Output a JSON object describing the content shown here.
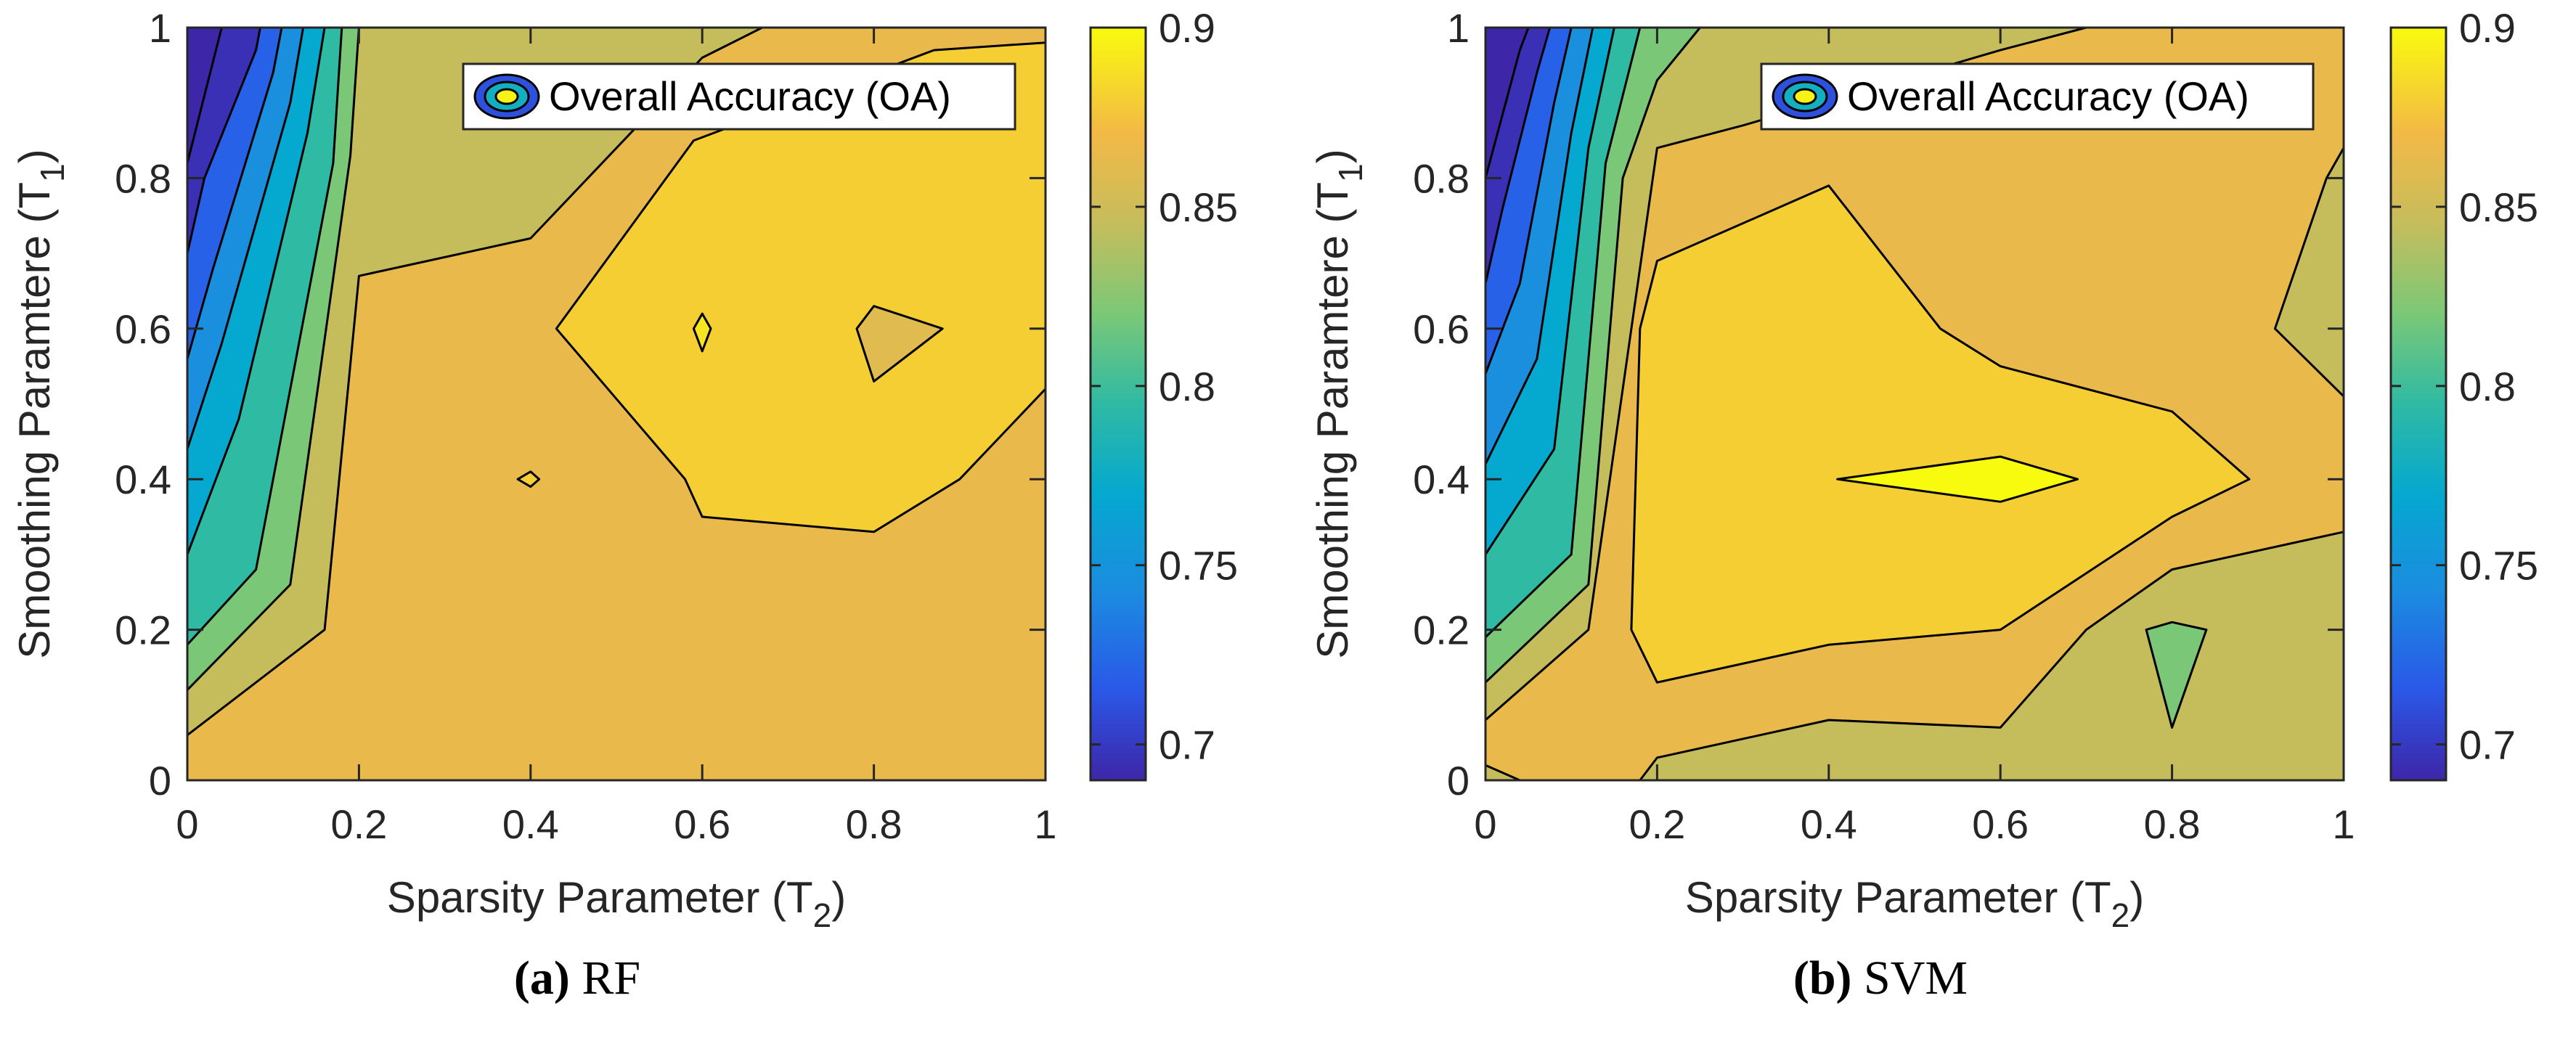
{
  "chart_data": [
    {
      "type": "contour",
      "panel_label": "(a)",
      "panel_name": "RF",
      "xlabel": "Sparsity Parameter (T",
      "xlabel_sub": "2",
      "ylabel": "Smoothing Paramtere (T",
      "ylabel_sub": "1",
      "xlim": [
        0,
        1
      ],
      "ylim": [
        0,
        1
      ],
      "xticks": [
        0,
        0.2,
        0.4,
        0.6,
        0.8,
        1
      ],
      "yticks": [
        0,
        0.2,
        0.4,
        0.6,
        0.8,
        1
      ],
      "xtick_labels": [
        "0",
        "0.2",
        "0.4",
        "0.6",
        "0.8",
        "1"
      ],
      "ytick_labels": [
        "0",
        "0.2",
        "0.4",
        "0.6",
        "0.8",
        "1"
      ],
      "legend": "Overall Accuracy (OA)",
      "colorbar": {
        "range": [
          0.69,
          0.9
        ],
        "ticks": [
          "0.7",
          "0.75",
          "0.8",
          "0.85",
          "0.9"
        ]
      },
      "regions": [
        {
          "level": 0.865,
          "points": [
            [
              0,
              0
            ],
            [
              1,
              0
            ],
            [
              1,
              1
            ],
            [
              0,
              1
            ]
          ]
        },
        {
          "level": 0.845,
          "points": [
            [
              0,
              0.06
            ],
            [
              0.16,
              0.2
            ],
            [
              0.2,
              0.67
            ],
            [
              0.4,
              0.72
            ],
            [
              0.6,
              0.96
            ],
            [
              0.67,
              1
            ],
            [
              0,
              1
            ]
          ]
        },
        {
          "level": 0.82,
          "points": [
            [
              0,
              0.12
            ],
            [
              0.12,
              0.26
            ],
            [
              0.19,
              0.83
            ],
            [
              0.2,
              1
            ],
            [
              0,
              1
            ]
          ]
        },
        {
          "level": 0.795,
          "points": [
            [
              0,
              0.18
            ],
            [
              0.08,
              0.28
            ],
            [
              0.17,
              0.82
            ],
            [
              0.18,
              1
            ],
            [
              0,
              1
            ]
          ]
        },
        {
          "level": 0.77,
          "points": [
            [
              0,
              0.3
            ],
            [
              0.06,
              0.48
            ],
            [
              0.14,
              0.86
            ],
            [
              0.16,
              1
            ],
            [
              0,
              1
            ]
          ]
        },
        {
          "level": 0.745,
          "points": [
            [
              0,
              0.44
            ],
            [
              0.04,
              0.58
            ],
            [
              0.12,
              0.9
            ],
            [
              0.135,
              1
            ],
            [
              0,
              1
            ]
          ]
        },
        {
          "level": 0.72,
          "points": [
            [
              0,
              0.56
            ],
            [
              0.03,
              0.68
            ],
            [
              0.1,
              0.94
            ],
            [
              0.11,
              1
            ],
            [
              0,
              1
            ]
          ]
        },
        {
          "level": 0.695,
          "points": [
            [
              0,
              0.7
            ],
            [
              0.02,
              0.8
            ],
            [
              0.08,
              0.97
            ],
            [
              0.085,
              1
            ],
            [
              0,
              1
            ]
          ]
        },
        {
          "level": 0.675,
          "points": [
            [
              0,
              0.82
            ],
            [
              0.04,
              1
            ],
            [
              0,
              1
            ]
          ]
        },
        {
          "level": 0.88,
          "points": [
            [
              0.43,
              0.6
            ],
            [
              0.58,
              0.4
            ],
            [
              0.6,
              0.35
            ],
            [
              0.8,
              0.33
            ],
            [
              0.9,
              0.4
            ],
            [
              1,
              0.52
            ],
            [
              1,
              0.98
            ],
            [
              0.87,
              0.97
            ],
            [
              0.59,
              0.85
            ]
          ]
        },
        {
          "level": 0.86,
          "points": [
            [
              0.78,
              0.6
            ],
            [
              0.8,
              0.63
            ],
            [
              0.88,
              0.6
            ],
            [
              0.8,
              0.53
            ]
          ]
        },
        {
          "level": 0.89,
          "points": [
            [
              0.6,
              0.62
            ],
            [
              0.61,
              0.6
            ],
            [
              0.6,
              0.57
            ],
            [
              0.59,
              0.6
            ]
          ]
        },
        {
          "level": 0.88,
          "points": [
            [
              0.385,
              0.4
            ],
            [
              0.4,
              0.41
            ],
            [
              0.41,
              0.4
            ],
            [
              0.4,
              0.39
            ]
          ]
        }
      ]
    },
    {
      "type": "contour",
      "panel_label": "(b)",
      "panel_name": "SVM",
      "xlabel": "Sparsity Parameter (T",
      "xlabel_sub": "2",
      "ylabel": "Smoothing Paramtere (T",
      "ylabel_sub": "1",
      "xlim": [
        0,
        1
      ],
      "ylim": [
        0,
        1
      ],
      "xticks": [
        0,
        0.2,
        0.4,
        0.6,
        0.8,
        1
      ],
      "yticks": [
        0,
        0.2,
        0.4,
        0.6,
        0.8,
        1
      ],
      "xtick_labels": [
        "0",
        "0.2",
        "0.4",
        "0.6",
        "0.8",
        "1"
      ],
      "ytick_labels": [
        "0",
        "0.2",
        "0.4",
        "0.6",
        "0.8",
        "1"
      ],
      "legend": "Overall Accuracy (OA)",
      "colorbar": {
        "range": [
          0.69,
          0.9
        ],
        "ticks": [
          "0.7",
          "0.75",
          "0.8",
          "0.85",
          "0.9"
        ]
      },
      "regions": [
        {
          "level": 0.865,
          "points": [
            [
              0,
              0
            ],
            [
              1,
              0
            ],
            [
              1,
              1
            ],
            [
              0,
              1
            ]
          ]
        },
        {
          "level": 0.845,
          "points": [
            [
              0.18,
              0
            ],
            [
              0.2,
              0.03
            ],
            [
              0.4,
              0.08
            ],
            [
              0.6,
              0.07
            ],
            [
              0.7,
              0.2
            ],
            [
              0.8,
              0.28
            ],
            [
              1,
              0.33
            ],
            [
              1,
              0
            ]
          ]
        },
        {
          "level": 0.845,
          "points": [
            [
              0,
              0.02
            ],
            [
              0.04,
              0
            ],
            [
              0,
              0
            ]
          ]
        },
        {
          "level": 0.845,
          "points": [
            [
              1,
              0.84
            ],
            [
              0.98,
              0.8
            ],
            [
              0.92,
              0.6
            ],
            [
              1,
              0.51
            ]
          ]
        },
        {
          "level": 0.845,
          "points": [
            [
              0,
              0.08
            ],
            [
              0.12,
              0.2
            ],
            [
              0.2,
              0.84
            ],
            [
              0.3,
              0.87
            ],
            [
              0.6,
              0.97
            ],
            [
              0.7,
              1
            ],
            [
              0,
              1
            ]
          ]
        },
        {
          "level": 0.82,
          "points": [
            [
              0.77,
              0.2
            ],
            [
              0.8,
              0.21
            ],
            [
              0.84,
              0.2
            ],
            [
              0.8,
              0.07
            ]
          ]
        },
        {
          "level": 0.82,
          "points": [
            [
              0,
              0.13
            ],
            [
              0.12,
              0.26
            ],
            [
              0.16,
              0.8
            ],
            [
              0.2,
              0.93
            ],
            [
              0.25,
              1
            ],
            [
              0,
              1
            ]
          ]
        },
        {
          "level": 0.795,
          "points": [
            [
              0,
              0.19
            ],
            [
              0.1,
              0.3
            ],
            [
              0.14,
              0.82
            ],
            [
              0.18,
              1
            ],
            [
              0,
              1
            ]
          ]
        },
        {
          "level": 0.77,
          "points": [
            [
              0,
              0.3
            ],
            [
              0.08,
              0.44
            ],
            [
              0.12,
              0.84
            ],
            [
              0.15,
              1
            ],
            [
              0,
              1
            ]
          ]
        },
        {
          "level": 0.745,
          "points": [
            [
              0,
              0.42
            ],
            [
              0.06,
              0.56
            ],
            [
              0.1,
              0.86
            ],
            [
              0.125,
              1
            ],
            [
              0,
              1
            ]
          ]
        },
        {
          "level": 0.72,
          "points": [
            [
              0,
              0.54
            ],
            [
              0.04,
              0.66
            ],
            [
              0.08,
              0.9
            ],
            [
              0.1,
              1
            ],
            [
              0,
              1
            ]
          ]
        },
        {
          "level": 0.695,
          "points": [
            [
              0,
              0.66
            ],
            [
              0.02,
              0.76
            ],
            [
              0.06,
              0.94
            ],
            [
              0.075,
              1
            ],
            [
              0,
              1
            ]
          ]
        },
        {
          "level": 0.675,
          "points": [
            [
              0,
              0.8
            ],
            [
              0.04,
              0.97
            ],
            [
              0.05,
              1
            ],
            [
              0,
              1
            ]
          ]
        },
        {
          "level": 0.88,
          "points": [
            [
              0.17,
              0.2
            ],
            [
              0.2,
              0.13
            ],
            [
              0.4,
              0.18
            ],
            [
              0.6,
              0.2
            ],
            [
              0.8,
              0.35
            ],
            [
              0.89,
              0.4
            ],
            [
              0.8,
              0.49
            ],
            [
              0.6,
              0.55
            ],
            [
              0.53,
              0.6
            ],
            [
              0.4,
              0.79
            ],
            [
              0.2,
              0.69
            ],
            [
              0.18,
              0.6
            ]
          ]
        },
        {
          "level": 0.9,
          "points": [
            [
              0.41,
              0.4
            ],
            [
              0.6,
              0.43
            ],
            [
              0.69,
              0.4
            ],
            [
              0.6,
              0.37
            ]
          ]
        }
      ]
    }
  ]
}
